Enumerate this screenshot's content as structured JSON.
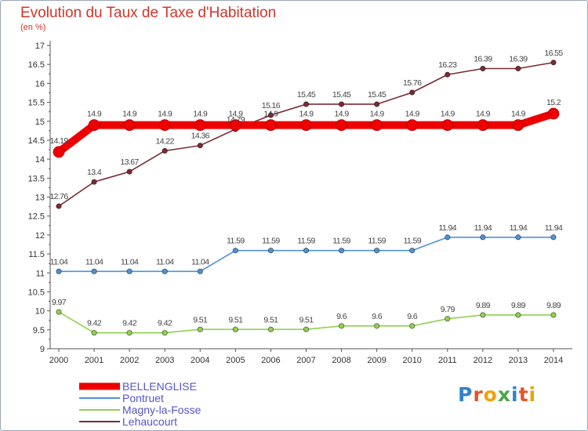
{
  "chart_data": {
    "type": "line",
    "title": "Evolution du Taux de Taxe d'Habitation",
    "unit": "(en %)",
    "x": [
      "2000",
      "2001",
      "2002",
      "2003",
      "2004",
      "2005",
      "2006",
      "2007",
      "2008",
      "2009",
      "2010",
      "2011",
      "2012",
      "2013",
      "2014"
    ],
    "ylim": [
      9,
      17
    ],
    "yticks": [
      "9",
      "9.5",
      "10",
      "10.5",
      "11",
      "11.5",
      "12",
      "12.5",
      "13",
      "13.5",
      "14",
      "14.5",
      "15",
      "15.5",
      "16",
      "16.5",
      "17"
    ],
    "grid": false,
    "legend_position": "bottom-left",
    "series": [
      {
        "name": "BELLENGLISE",
        "color": "#ee0000",
        "values": [
          14.19,
          14.9,
          14.9,
          14.9,
          14.9,
          14.9,
          14.9,
          14.9,
          14.9,
          14.9,
          14.9,
          14.9,
          14.9,
          14.9,
          15.2
        ],
        "labels": [
          "14.19",
          "14.9",
          "14.9",
          "14.9",
          "14.9",
          "14.9",
          "14.9",
          "14.9",
          "14.9",
          "14.9",
          "14.9",
          "14.9",
          "14.9",
          "14.9",
          "15.2"
        ]
      },
      {
        "name": "Pontruet",
        "color": "#4f92d6",
        "values": [
          11.04,
          11.04,
          11.04,
          11.04,
          11.04,
          11.59,
          11.59,
          11.59,
          11.59,
          11.59,
          11.59,
          11.94,
          11.94,
          11.94,
          11.94
        ],
        "labels": [
          "11.04",
          "11.04",
          "11.04",
          "11.04",
          "11.04",
          "11.59",
          "11.59",
          "11.59",
          "11.59",
          "11.59",
          "11.59",
          "11.94",
          "11.94",
          "11.94",
          "11.94"
        ]
      },
      {
        "name": "Magny-la-Fosse",
        "color": "#8fd14f",
        "values": [
          9.97,
          9.42,
          9.42,
          9.42,
          9.51,
          9.51,
          9.51,
          9.51,
          9.6,
          9.6,
          9.6,
          9.79,
          9.89,
          9.89,
          9.89
        ],
        "labels": [
          "9.97",
          "9.42",
          "9.42",
          "9.42",
          "9.51",
          "9.51",
          "9.51",
          "9.51",
          "9.6",
          "9.6",
          "9.6",
          "9.79",
          "9.89",
          "9.89",
          "9.89"
        ]
      },
      {
        "name": "Lehaucourt",
        "color": "#7b2a34",
        "values": [
          12.76,
          13.4,
          13.67,
          14.22,
          14.36,
          14.79,
          15.16,
          15.45,
          15.45,
          15.45,
          15.76,
          16.23,
          16.39,
          16.39,
          16.55
        ],
        "labels": [
          "12.76",
          "13.4",
          "13.67",
          "14.22",
          "14.36",
          "14.79",
          "15.16",
          "15.45",
          "15.45",
          "15.45",
          "15.76",
          "16.23",
          "16.39",
          "16.39",
          "16.55"
        ]
      }
    ]
  },
  "branding": {
    "logo_letters": [
      "P",
      "r",
      "o",
      "x",
      "i",
      "t",
      "i"
    ],
    "logo_colors": [
      "#2f83c8",
      "#e0562a",
      "#f0a10a",
      "#4aa845",
      "#2f83c8",
      "#e0562a",
      "#f0a10a"
    ]
  }
}
